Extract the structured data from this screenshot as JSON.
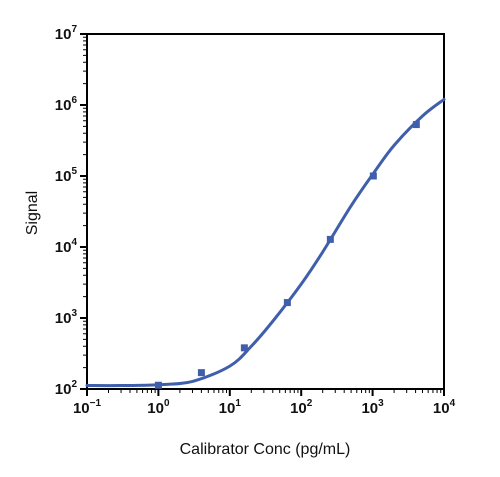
{
  "chart_data": {
    "type": "scatter",
    "title": "",
    "xlabel": "Calibrator Conc (pg/mL)",
    "ylabel": "Signal",
    "xscale": "log",
    "yscale": "log",
    "xlim": [
      0.1,
      10000
    ],
    "ylim": [
      100,
      10000000
    ],
    "grid": false,
    "legend": "none",
    "x_ticks": [
      {
        "base": "10",
        "exp": "−1"
      },
      {
        "base": "10",
        "exp": "0"
      },
      {
        "base": "10",
        "exp": "1"
      },
      {
        "base": "10",
        "exp": "2"
      },
      {
        "base": "10",
        "exp": "3"
      },
      {
        "base": "10",
        "exp": "4"
      }
    ],
    "y_ticks": [
      {
        "base": "10",
        "exp": "2"
      },
      {
        "base": "10",
        "exp": "3"
      },
      {
        "base": "10",
        "exp": "4"
      },
      {
        "base": "10",
        "exp": "5"
      },
      {
        "base": "10",
        "exp": "6"
      },
      {
        "base": "10",
        "exp": "7"
      }
    ],
    "series": [
      {
        "kind": "points",
        "marker": "square",
        "color": "#3f5faa",
        "points": [
          {
            "x": 1.0,
            "y": 113
          },
          {
            "x": 4.0,
            "y": 170
          },
          {
            "x": 16.0,
            "y": 380
          },
          {
            "x": 64.0,
            "y": 1650
          },
          {
            "x": 256.0,
            "y": 12800
          },
          {
            "x": 1024.0,
            "y": 100000
          },
          {
            "x": 4096.0,
            "y": 530000
          }
        ]
      },
      {
        "kind": "fit",
        "color": "#3f5faa",
        "curve": [
          {
            "x": 0.1,
            "y": 112
          },
          {
            "x": 0.3,
            "y": 112
          },
          {
            "x": 1.0,
            "y": 115
          },
          {
            "x": 3.0,
            "y": 128
          },
          {
            "x": 10.0,
            "y": 210
          },
          {
            "x": 20.0,
            "y": 400
          },
          {
            "x": 40.0,
            "y": 900
          },
          {
            "x": 100.0,
            "y": 3000
          },
          {
            "x": 200.0,
            "y": 8500
          },
          {
            "x": 500.0,
            "y": 38000
          },
          {
            "x": 1000.0,
            "y": 105000
          },
          {
            "x": 2000.0,
            "y": 270000
          },
          {
            "x": 5000.0,
            "y": 700000
          },
          {
            "x": 10000.0,
            "y": 1200000
          }
        ]
      }
    ]
  },
  "colors": {
    "series": "#3f5faa",
    "axis": "#000000",
    "text": "#111111"
  }
}
